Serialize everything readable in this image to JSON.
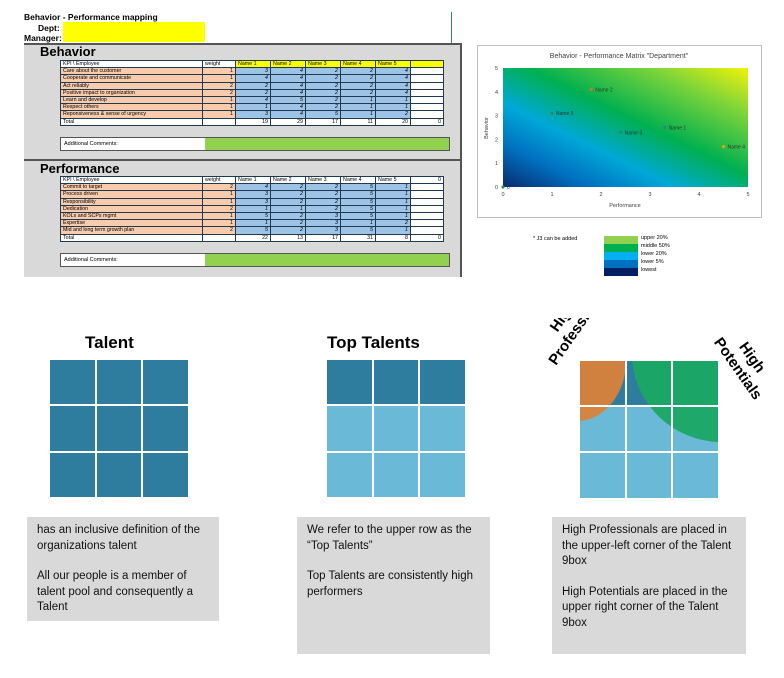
{
  "header": {
    "title": "Behavior - Performance mapping",
    "dept_label": "Dept:",
    "manager_label": "Manager:"
  },
  "behavior": {
    "title": "Behavior",
    "columns": [
      "KPI \\ Employee",
      "weight",
      "Name 1",
      "Name 2",
      "Name 3",
      "Name 4",
      "Name 5"
    ],
    "rows": [
      {
        "label": "Care about the customer",
        "weight": "1",
        "v": [
          "3",
          "4",
          "2",
          "2",
          "4"
        ]
      },
      {
        "label": "Cooperate and communicate",
        "weight": "1",
        "v": [
          "4",
          "4",
          "2",
          "2",
          "4"
        ]
      },
      {
        "label": "Act reliably",
        "weight": "2",
        "v": [
          "2",
          "4",
          "2",
          "2",
          "4"
        ]
      },
      {
        "label": "Positive impact to organization",
        "weight": "2",
        "v": [
          "2",
          "4",
          "2",
          "2",
          "4"
        ]
      },
      {
        "label": "Learn and develop",
        "weight": "1",
        "v": [
          "4",
          "5",
          "2",
          "1",
          "1"
        ]
      },
      {
        "label": "Respect others",
        "weight": "1",
        "v": [
          "1",
          "4",
          "2",
          "1",
          "1"
        ]
      },
      {
        "label": "Reponsiveness & sense of urgency",
        "weight": "1",
        "v": [
          "3",
          "4",
          "5",
          "1",
          "2"
        ]
      }
    ],
    "total": {
      "label": "Total",
      "v": [
        "19",
        "29",
        "17",
        "11",
        "20"
      ],
      "tail": "0"
    },
    "comments_label": "Additional Comments:"
  },
  "performance": {
    "title": "Performance",
    "columns": [
      "KPI \\ Employee",
      "weight",
      "Name 1",
      "Name 2",
      "Name 3",
      "Name 4",
      "Name 5"
    ],
    "head_tail": "0",
    "rows": [
      {
        "label": "Commit to target",
        "weight": "2",
        "v": [
          "4",
          "2",
          "2",
          "5",
          "1"
        ]
      },
      {
        "label": "Process driven",
        "weight": "1",
        "v": [
          "3",
          "2",
          "2",
          "5",
          "1"
        ]
      },
      {
        "label": "Responsibility",
        "weight": "1",
        "v": [
          "3",
          "2",
          "2",
          "5",
          "1"
        ]
      },
      {
        "label": "Dedication",
        "weight": "2",
        "v": [
          "1",
          "1",
          "2",
          "5",
          "1"
        ]
      },
      {
        "label": "KOLs and SCPs mgmt",
        "weight": "1",
        "v": [
          "5",
          "2",
          "3",
          "5",
          "1"
        ]
      },
      {
        "label": "Expertise",
        "weight": "1",
        "v": [
          "1",
          "2",
          "3",
          "1",
          "2"
        ]
      },
      {
        "label": "Mid and long term growth plan",
        "weight": "2",
        "v": [
          "5",
          "2",
          "3",
          "5",
          "1"
        ]
      }
    ],
    "total": {
      "label": "Total",
      "v": [
        "22",
        "13",
        "17",
        "31",
        "8"
      ],
      "tail": "0"
    },
    "comments_label": "Additional Comments:"
  },
  "chart_data": {
    "type": "scatter",
    "title": "Behavior - Performance Matrix \"Department\"",
    "xlabel": "Performance",
    "ylabel": "Behavior",
    "xlim": [
      0,
      5
    ],
    "ylim": [
      0,
      5
    ],
    "xticks": [
      "0",
      "1",
      "2",
      "3",
      "4",
      "5"
    ],
    "yticks": [
      "0",
      "1",
      "2",
      "3",
      "4",
      "5"
    ],
    "points": [
      {
        "name": "Name 1",
        "x": 3.3,
        "y": 2.5
      },
      {
        "name": "Name 2",
        "x": 1.8,
        "y": 4.1
      },
      {
        "name": "Name 3",
        "x": 2.4,
        "y": 2.3
      },
      {
        "name": "Name 4",
        "x": 4.5,
        "y": 1.7
      },
      {
        "name": "Name 5",
        "x": 1.0,
        "y": 3.1
      },
      {
        "name": "0",
        "x": 0.0,
        "y": 0.0
      }
    ]
  },
  "note": "* J3 can be added",
  "legend": [
    {
      "label": "upper 20%",
      "color": "#92d050"
    },
    {
      "label": "middle 50%",
      "color": "#00b050"
    },
    {
      "label": "lower 20%",
      "color": "#00b0f0"
    },
    {
      "label": "lower 5%",
      "color": "#0070c0"
    },
    {
      "label": "lowest",
      "color": "#002060"
    }
  ],
  "talent": {
    "title": "Talent",
    "desc": [
      " has an inclusive definition of the organizations talent",
      "All our people is a member of talent pool and consequently a Talent"
    ]
  },
  "top_talents": {
    "title": "Top Talents",
    "desc": [
      "We refer to the upper row as the “Top Talents”",
      "Top Talents are consistently high performers"
    ]
  },
  "high": {
    "professionals_label": [
      "High",
      "Professionals"
    ],
    "potentials_label": [
      "High",
      "Potentials"
    ],
    "desc": [
      "High Professionals are placed in the upper-left corner of the Talent 9box",
      "High Potentials are placed in the upper right corner of the Talent 9box"
    ]
  },
  "colors": {
    "dark_teal": "#2e7d9e",
    "light_blue": "#6ab9d6",
    "orange": "#d9823a",
    "green": "#1aa864"
  }
}
